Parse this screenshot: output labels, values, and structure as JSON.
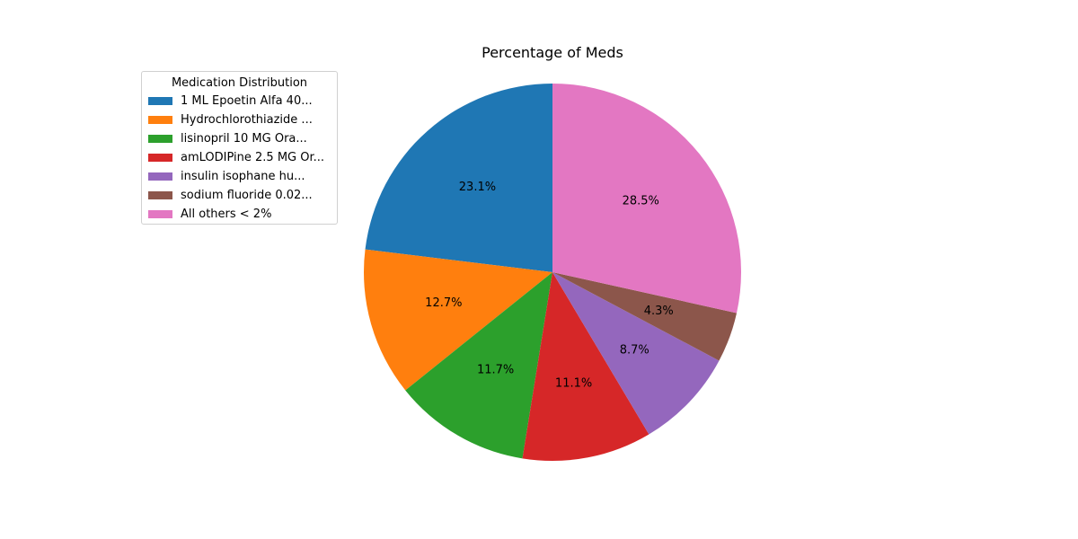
{
  "chart_data": {
    "type": "pie",
    "title": "Percentage of Meds",
    "legend": {
      "title": "Medication Distribution",
      "placement": "upper-left"
    },
    "slices": [
      {
        "label": "1 ML Epoetin Alfa 40...",
        "value": 23.1,
        "pct_label": "23.1%",
        "color": "#1f77b4"
      },
      {
        "label": "Hydrochlorothiazide ...",
        "value": 12.7,
        "pct_label": "12.7%",
        "color": "#ff7f0e"
      },
      {
        "label": "lisinopril 10 MG Ora...",
        "value": 11.7,
        "pct_label": "11.7%",
        "color": "#2ca02c"
      },
      {
        "label": "amLODIPine 2.5 MG Or...",
        "value": 11.1,
        "pct_label": "11.1%",
        "color": "#d62728"
      },
      {
        "label": "insulin isophane  hu...",
        "value": 8.7,
        "pct_label": "8.7%",
        "color": "#9467bd"
      },
      {
        "label": "sodium fluoride 0.02...",
        "value": 4.3,
        "pct_label": "4.3%",
        "color": "#8c564b"
      },
      {
        "label": "All others < 2%",
        "value": 28.5,
        "pct_label": "28.5%",
        "color": "#e377c2"
      }
    ],
    "start_angle_deg": 90,
    "direction": "counterclockwise"
  }
}
